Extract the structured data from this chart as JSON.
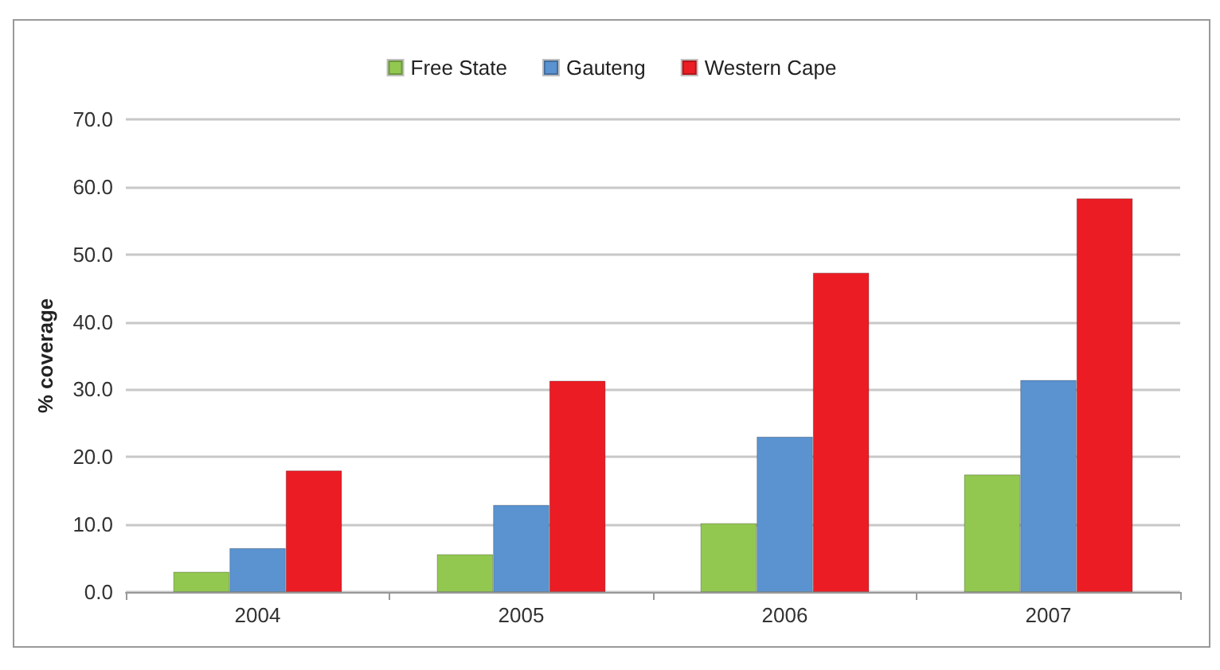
{
  "chart_data": {
    "type": "bar",
    "ylabel": "% coverage",
    "categories": [
      "2004",
      "2005",
      "2006",
      "2007"
    ],
    "series": [
      {
        "name": "Free State",
        "color": "#92c850",
        "values": [
          3.0,
          5.6,
          10.2,
          17.4
        ]
      },
      {
        "name": "Gauteng",
        "color": "#5b93d0",
        "values": [
          6.5,
          12.9,
          23.0,
          31.4
        ]
      },
      {
        "name": "Western Cape",
        "color": "#ec1c24",
        "values": [
          18.0,
          31.3,
          47.3,
          58.3
        ]
      }
    ],
    "ylim": [
      0,
      70
    ],
    "yticks": [
      {
        "value": 0,
        "label": "0.0"
      },
      {
        "value": 10,
        "label": "10.0"
      },
      {
        "value": 20,
        "label": "20.0"
      },
      {
        "value": 30,
        "label": "30.0"
      },
      {
        "value": 40,
        "label": "40.0"
      },
      {
        "value": 50,
        "label": "50.0"
      },
      {
        "value": 60,
        "label": "60.0"
      },
      {
        "value": 70,
        "label": "70.0"
      }
    ],
    "grid": "y",
    "legend": "top"
  }
}
